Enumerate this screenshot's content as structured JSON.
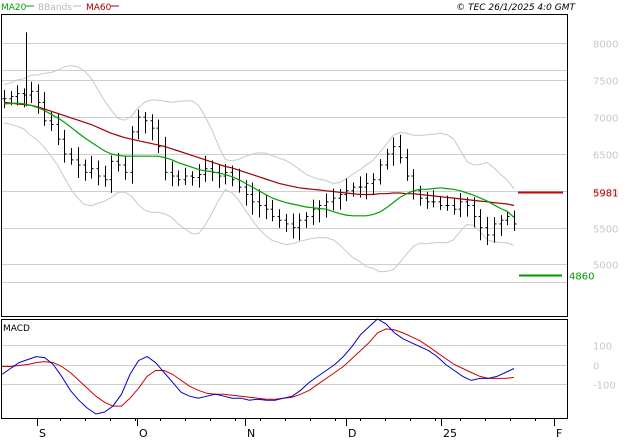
{
  "header": {
    "legend": [
      {
        "label": "MA20",
        "color": "#00a000"
      },
      {
        "label": "BBands",
        "color": "#b8b8b8"
      },
      {
        "label": "MA60",
        "color": "#a00000"
      }
    ],
    "watermark": "© TEC 26/1/2025 4:0 GMT"
  },
  "chart_data": [
    {
      "type": "line",
      "subtype": "ohlc-bars",
      "y_ticks": [
        "8000",
        "7500",
        "7000",
        "6500",
        "6000",
        "5500",
        "5000"
      ],
      "ylim": [
        4300,
        8400
      ],
      "x_labels": [
        "S",
        "O",
        "N",
        "D",
        "25",
        "F"
      ],
      "grid": true,
      "colors": {
        "bars": "#000000",
        "ma20": "#00a000",
        "ma60": "#a00000",
        "bbands": "#b8b8b8"
      },
      "markers": [
        {
          "label": "5981",
          "value": 5981,
          "color": "#cc0000"
        },
        {
          "label": "4860",
          "value": 4860,
          "color": "#009900"
        }
      ],
      "series": [
        {
          "name": "MA20",
          "values": [
            7180,
            7185,
            7190,
            7180,
            7160,
            7130,
            7090,
            7040,
            6990,
            6930,
            6860,
            6790,
            6720,
            6660,
            6600,
            6540,
            6500,
            6480,
            6470,
            6470,
            6470,
            6470,
            6470,
            6470,
            6450,
            6420,
            6380,
            6350,
            6320,
            6290,
            6270,
            6260,
            6240,
            6220,
            6190,
            6150,
            6100,
            6050,
            6000,
            5950,
            5900,
            5870,
            5840,
            5820,
            5800,
            5780,
            5770,
            5760,
            5750,
            5720,
            5690,
            5670,
            5660,
            5660,
            5660,
            5680,
            5710,
            5770,
            5840,
            5910,
            5960,
            6000,
            6020,
            6020,
            6030,
            6040,
            6030,
            6020,
            6000,
            5970,
            5940,
            5900,
            5860,
            5810,
            5760,
            5720,
            5640
          ]
        },
        {
          "name": "MA60",
          "values": [
            7200,
            7190,
            7180,
            7170,
            7160,
            7140,
            7110,
            7080,
            7050,
            7020,
            6990,
            6960,
            6930,
            6900,
            6860,
            6820,
            6780,
            6750,
            6720,
            6700,
            6680,
            6660,
            6640,
            6620,
            6600,
            6570,
            6540,
            6510,
            6480,
            6450,
            6420,
            6390,
            6360,
            6330,
            6310,
            6280,
            6250,
            6220,
            6190,
            6160,
            6130,
            6100,
            6080,
            6060,
            6040,
            6030,
            6020,
            6010,
            6000,
            5990,
            5980,
            5970,
            5960,
            5950,
            5950,
            5950,
            5960,
            5960,
            5970,
            5970,
            5960,
            5960,
            5950,
            5940,
            5930,
            5920,
            5910,
            5900,
            5890,
            5880,
            5870,
            5860,
            5850,
            5840,
            5830,
            5820,
            5800
          ]
        },
        {
          "name": "Close",
          "values": [
            7250,
            7280,
            7320,
            7300,
            7350,
            7200,
            6950,
            6900,
            6700,
            6500,
            6420,
            6350,
            6250,
            6300,
            6200,
            6150,
            6400,
            6350,
            6250,
            6800,
            7000,
            6950,
            6850,
            6600,
            6250,
            6200,
            6150,
            6200,
            6180,
            6220,
            6300,
            6250,
            6200,
            6250,
            6150,
            6050,
            5950,
            5850,
            5800,
            5750,
            5650,
            5600,
            5550,
            5500,
            5600,
            5650,
            5750,
            5800,
            5850,
            5900,
            5950,
            6000,
            6050,
            6050,
            6100,
            6150,
            6350,
            6500,
            6600,
            6450,
            6200,
            6000,
            5900,
            5850,
            5850,
            5800,
            5800,
            5750,
            5850,
            5800,
            5650,
            5500,
            5400,
            5550,
            5600,
            5650,
            5550
          ]
        }
      ]
    },
    {
      "type": "line",
      "title": "MACD",
      "y_ticks": [
        "100",
        "0",
        "-100"
      ],
      "ylim": [
        -270,
        230
      ],
      "x_labels": [
        "S",
        "O",
        "N",
        "D",
        "25",
        "F"
      ],
      "grid": true,
      "series": [
        {
          "name": "MACD",
          "color": "#0000cc",
          "values": [
            -50,
            -20,
            10,
            25,
            40,
            35,
            0,
            -60,
            -130,
            -180,
            -220,
            -250,
            -240,
            -210,
            -150,
            -50,
            20,
            40,
            10,
            -40,
            -90,
            -140,
            -160,
            -170,
            -160,
            -150,
            -160,
            -170,
            -170,
            -180,
            -175,
            -180,
            -180,
            -170,
            -160,
            -130,
            -90,
            -60,
            -30,
            0,
            40,
            90,
            150,
            190,
            230,
            205,
            160,
            130,
            110,
            90,
            70,
            40,
            0,
            -30,
            -60,
            -80,
            -70,
            -70,
            -60,
            -40,
            -20
          ]
        },
        {
          "name": "Signal",
          "color": "#cc0000",
          "values": [
            -10,
            -10,
            -5,
            0,
            10,
            15,
            10,
            -10,
            -40,
            -80,
            -120,
            -160,
            -190,
            -210,
            -210,
            -170,
            -120,
            -60,
            -30,
            -30,
            -50,
            -80,
            -110,
            -130,
            -145,
            -150,
            -150,
            -155,
            -160,
            -165,
            -170,
            -175,
            -175,
            -170,
            -165,
            -150,
            -130,
            -100,
            -70,
            -40,
            -10,
            30,
            70,
            110,
            160,
            180,
            175,
            160,
            140,
            120,
            90,
            60,
            30,
            0,
            -20,
            -40,
            -60,
            -70,
            -70,
            -70,
            -65
          ]
        }
      ]
    }
  ]
}
